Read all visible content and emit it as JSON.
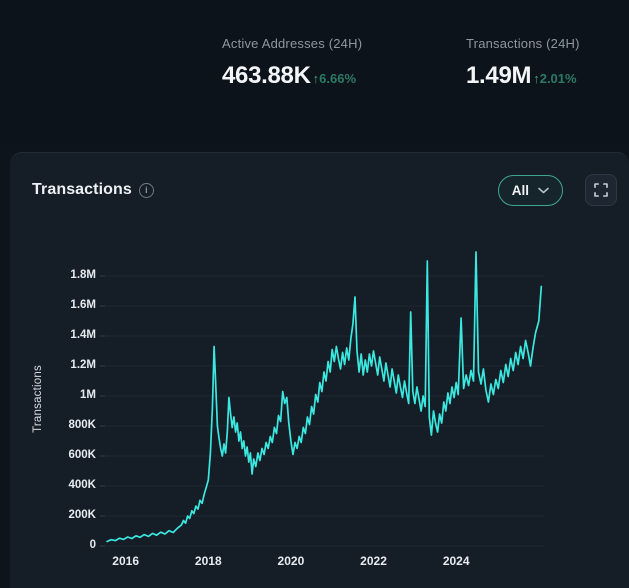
{
  "stats": {
    "active_addresses": {
      "label": "Active Addresses (24H)",
      "value": "463.88K",
      "change_pct": "6.66%",
      "direction": "up"
    },
    "transactions": {
      "label": "Transactions (24H)",
      "value": "1.49M",
      "change_pct": "2.01%",
      "direction": "up"
    }
  },
  "icons": {
    "up_arrow": "↑",
    "info": "i"
  },
  "panel": {
    "title": "Transactions",
    "range_selector_value": "All"
  },
  "colors": {
    "background_top": "#0d131a",
    "panel_background": "#151d27",
    "line": "#3be8df",
    "gridline": "#1f2833",
    "accent_green_border": "#3fa78e",
    "change_green": "#2c7a66",
    "text_primary": "#f3f6f8",
    "text_secondary": "#8d97a1"
  },
  "chart_data": {
    "type": "line",
    "title": "Transactions",
    "xlabel": "",
    "ylabel": "Transactions",
    "legend": "none",
    "grid": "horizontal",
    "line_color": "#3be8df",
    "x_range": [
      2015.5,
      2026.15
    ],
    "y_range": [
      0,
      2000000
    ],
    "x_ticks": [
      {
        "label": "2016",
        "value": 2016
      },
      {
        "label": "2018",
        "value": 2018
      },
      {
        "label": "2020",
        "value": 2020
      },
      {
        "label": "2022",
        "value": 2022
      },
      {
        "label": "2024",
        "value": 2024
      }
    ],
    "y_ticks": [
      {
        "label": "0",
        "value": 0
      },
      {
        "label": "200K",
        "value": 200000
      },
      {
        "label": "400K",
        "value": 400000
      },
      {
        "label": "600K",
        "value": 600000
      },
      {
        "label": "800K",
        "value": 800000
      },
      {
        "label": "1M",
        "value": 1000000
      },
      {
        "label": "1.2M",
        "value": 1200000
      },
      {
        "label": "1.4M",
        "value": 1400000
      },
      {
        "label": "1.6M",
        "value": 1600000
      },
      {
        "label": "1.8M",
        "value": 1800000
      }
    ],
    "series": [
      {
        "name": "Transactions",
        "points": [
          [
            2015.55,
            30000
          ],
          [
            2015.65,
            42000
          ],
          [
            2015.75,
            36000
          ],
          [
            2015.85,
            52000
          ],
          [
            2015.95,
            44000
          ],
          [
            2016.05,
            60000
          ],
          [
            2016.15,
            50000
          ],
          [
            2016.25,
            68000
          ],
          [
            2016.35,
            58000
          ],
          [
            2016.45,
            76000
          ],
          [
            2016.55,
            64000
          ],
          [
            2016.65,
            84000
          ],
          [
            2016.75,
            72000
          ],
          [
            2016.85,
            92000
          ],
          [
            2016.95,
            80000
          ],
          [
            2017.05,
            102000
          ],
          [
            2017.15,
            90000
          ],
          [
            2017.25,
            118000
          ],
          [
            2017.35,
            140000
          ],
          [
            2017.4,
            170000
          ],
          [
            2017.45,
            152000
          ],
          [
            2017.5,
            200000
          ],
          [
            2017.55,
            184000
          ],
          [
            2017.6,
            235000
          ],
          [
            2017.65,
            216000
          ],
          [
            2017.7,
            266000
          ],
          [
            2017.75,
            246000
          ],
          [
            2017.8,
            305000
          ],
          [
            2017.85,
            285000
          ],
          [
            2017.9,
            345000
          ],
          [
            2017.95,
            390000
          ],
          [
            2018.0,
            440000
          ],
          [
            2018.05,
            620000
          ],
          [
            2018.1,
            920000
          ],
          [
            2018.14,
            1330000
          ],
          [
            2018.18,
            1080000
          ],
          [
            2018.22,
            800000
          ],
          [
            2018.26,
            720000
          ],
          [
            2018.3,
            650000
          ],
          [
            2018.34,
            600000
          ],
          [
            2018.38,
            680000
          ],
          [
            2018.42,
            620000
          ],
          [
            2018.46,
            760000
          ],
          [
            2018.5,
            990000
          ],
          [
            2018.54,
            880000
          ],
          [
            2018.58,
            790000
          ],
          [
            2018.62,
            860000
          ],
          [
            2018.66,
            760000
          ],
          [
            2018.7,
            820000
          ],
          [
            2018.74,
            700000
          ],
          [
            2018.78,
            760000
          ],
          [
            2018.82,
            650000
          ],
          [
            2018.86,
            700000
          ],
          [
            2018.9,
            600000
          ],
          [
            2018.94,
            660000
          ],
          [
            2018.98,
            560000
          ],
          [
            2019.02,
            620000
          ],
          [
            2019.06,
            480000
          ],
          [
            2019.1,
            580000
          ],
          [
            2019.15,
            530000
          ],
          [
            2019.2,
            620000
          ],
          [
            2019.25,
            570000
          ],
          [
            2019.3,
            650000
          ],
          [
            2019.35,
            610000
          ],
          [
            2019.4,
            690000
          ],
          [
            2019.45,
            650000
          ],
          [
            2019.5,
            730000
          ],
          [
            2019.55,
            690000
          ],
          [
            2019.6,
            790000
          ],
          [
            2019.65,
            750000
          ],
          [
            2019.7,
            870000
          ],
          [
            2019.75,
            830000
          ],
          [
            2019.8,
            1030000
          ],
          [
            2019.85,
            950000
          ],
          [
            2019.9,
            990000
          ],
          [
            2019.95,
            820000
          ],
          [
            2020.0,
            700000
          ],
          [
            2020.05,
            610000
          ],
          [
            2020.1,
            690000
          ],
          [
            2020.15,
            650000
          ],
          [
            2020.2,
            730000
          ],
          [
            2020.25,
            690000
          ],
          [
            2020.3,
            790000
          ],
          [
            2020.35,
            750000
          ],
          [
            2020.4,
            860000
          ],
          [
            2020.45,
            810000
          ],
          [
            2020.5,
            930000
          ],
          [
            2020.55,
            880000
          ],
          [
            2020.6,
            1010000
          ],
          [
            2020.65,
            960000
          ],
          [
            2020.7,
            1090000
          ],
          [
            2020.75,
            1030000
          ],
          [
            2020.8,
            1160000
          ],
          [
            2020.85,
            1100000
          ],
          [
            2020.9,
            1230000
          ],
          [
            2020.95,
            1160000
          ],
          [
            2021.0,
            1310000
          ],
          [
            2021.05,
            1230000
          ],
          [
            2021.1,
            1330000
          ],
          [
            2021.15,
            1250000
          ],
          [
            2021.2,
            1180000
          ],
          [
            2021.25,
            1290000
          ],
          [
            2021.3,
            1210000
          ],
          [
            2021.35,
            1320000
          ],
          [
            2021.4,
            1240000
          ],
          [
            2021.45,
            1380000
          ],
          [
            2021.5,
            1480000
          ],
          [
            2021.55,
            1660000
          ],
          [
            2021.6,
            1300000
          ],
          [
            2021.65,
            1160000
          ],
          [
            2021.7,
            1280000
          ],
          [
            2021.75,
            1140000
          ],
          [
            2021.8,
            1240000
          ],
          [
            2021.85,
            1160000
          ],
          [
            2021.9,
            1280000
          ],
          [
            2021.95,
            1200000
          ],
          [
            2022.0,
            1300000
          ],
          [
            2022.05,
            1220000
          ],
          [
            2022.1,
            1140000
          ],
          [
            2022.15,
            1260000
          ],
          [
            2022.2,
            1180000
          ],
          [
            2022.25,
            1100000
          ],
          [
            2022.3,
            1220000
          ],
          [
            2022.35,
            1140000
          ],
          [
            2022.4,
            1060000
          ],
          [
            2022.45,
            1180000
          ],
          [
            2022.5,
            1100000
          ],
          [
            2022.55,
            1020000
          ],
          [
            2022.6,
            1140000
          ],
          [
            2022.65,
            1060000
          ],
          [
            2022.7,
            990000
          ],
          [
            2022.75,
            1100000
          ],
          [
            2022.8,
            1020000
          ],
          [
            2022.85,
            950000
          ],
          [
            2022.9,
            1560000
          ],
          [
            2022.95,
            1030000
          ],
          [
            2023.0,
            950000
          ],
          [
            2023.05,
            1060000
          ],
          [
            2023.1,
            980000
          ],
          [
            2023.15,
            900000
          ],
          [
            2023.2,
            1000000
          ],
          [
            2023.25,
            930000
          ],
          [
            2023.3,
            1900000
          ],
          [
            2023.35,
            860000
          ],
          [
            2023.4,
            740000
          ],
          [
            2023.45,
            900000
          ],
          [
            2023.5,
            820000
          ],
          [
            2023.55,
            760000
          ],
          [
            2023.6,
            880000
          ],
          [
            2023.65,
            820000
          ],
          [
            2023.7,
            960000
          ],
          [
            2023.75,
            900000
          ],
          [
            2023.8,
            1020000
          ],
          [
            2023.85,
            950000
          ],
          [
            2023.9,
            1060000
          ],
          [
            2023.95,
            990000
          ],
          [
            2024.0,
            1090000
          ],
          [
            2024.05,
            1010000
          ],
          [
            2024.12,
            1520000
          ],
          [
            2024.18,
            1050000
          ],
          [
            2024.24,
            1140000
          ],
          [
            2024.3,
            1070000
          ],
          [
            2024.36,
            1170000
          ],
          [
            2024.42,
            1100000
          ],
          [
            2024.48,
            1960000
          ],
          [
            2024.54,
            1160000
          ],
          [
            2024.6,
            1080000
          ],
          [
            2024.66,
            1180000
          ],
          [
            2024.72,
            1040000
          ],
          [
            2024.78,
            960000
          ],
          [
            2024.84,
            1080000
          ],
          [
            2024.9,
            1010000
          ],
          [
            2024.96,
            1110000
          ],
          [
            2025.02,
            1050000
          ],
          [
            2025.08,
            1170000
          ],
          [
            2025.14,
            1090000
          ],
          [
            2025.2,
            1210000
          ],
          [
            2025.26,
            1130000
          ],
          [
            2025.32,
            1250000
          ],
          [
            2025.38,
            1170000
          ],
          [
            2025.44,
            1290000
          ],
          [
            2025.5,
            1210000
          ],
          [
            2025.56,
            1330000
          ],
          [
            2025.62,
            1250000
          ],
          [
            2025.68,
            1370000
          ],
          [
            2025.74,
            1290000
          ],
          [
            2025.8,
            1200000
          ],
          [
            2025.86,
            1320000
          ],
          [
            2025.92,
            1420000
          ],
          [
            2026.0,
            1500000
          ],
          [
            2026.06,
            1730000
          ]
        ]
      }
    ]
  }
}
